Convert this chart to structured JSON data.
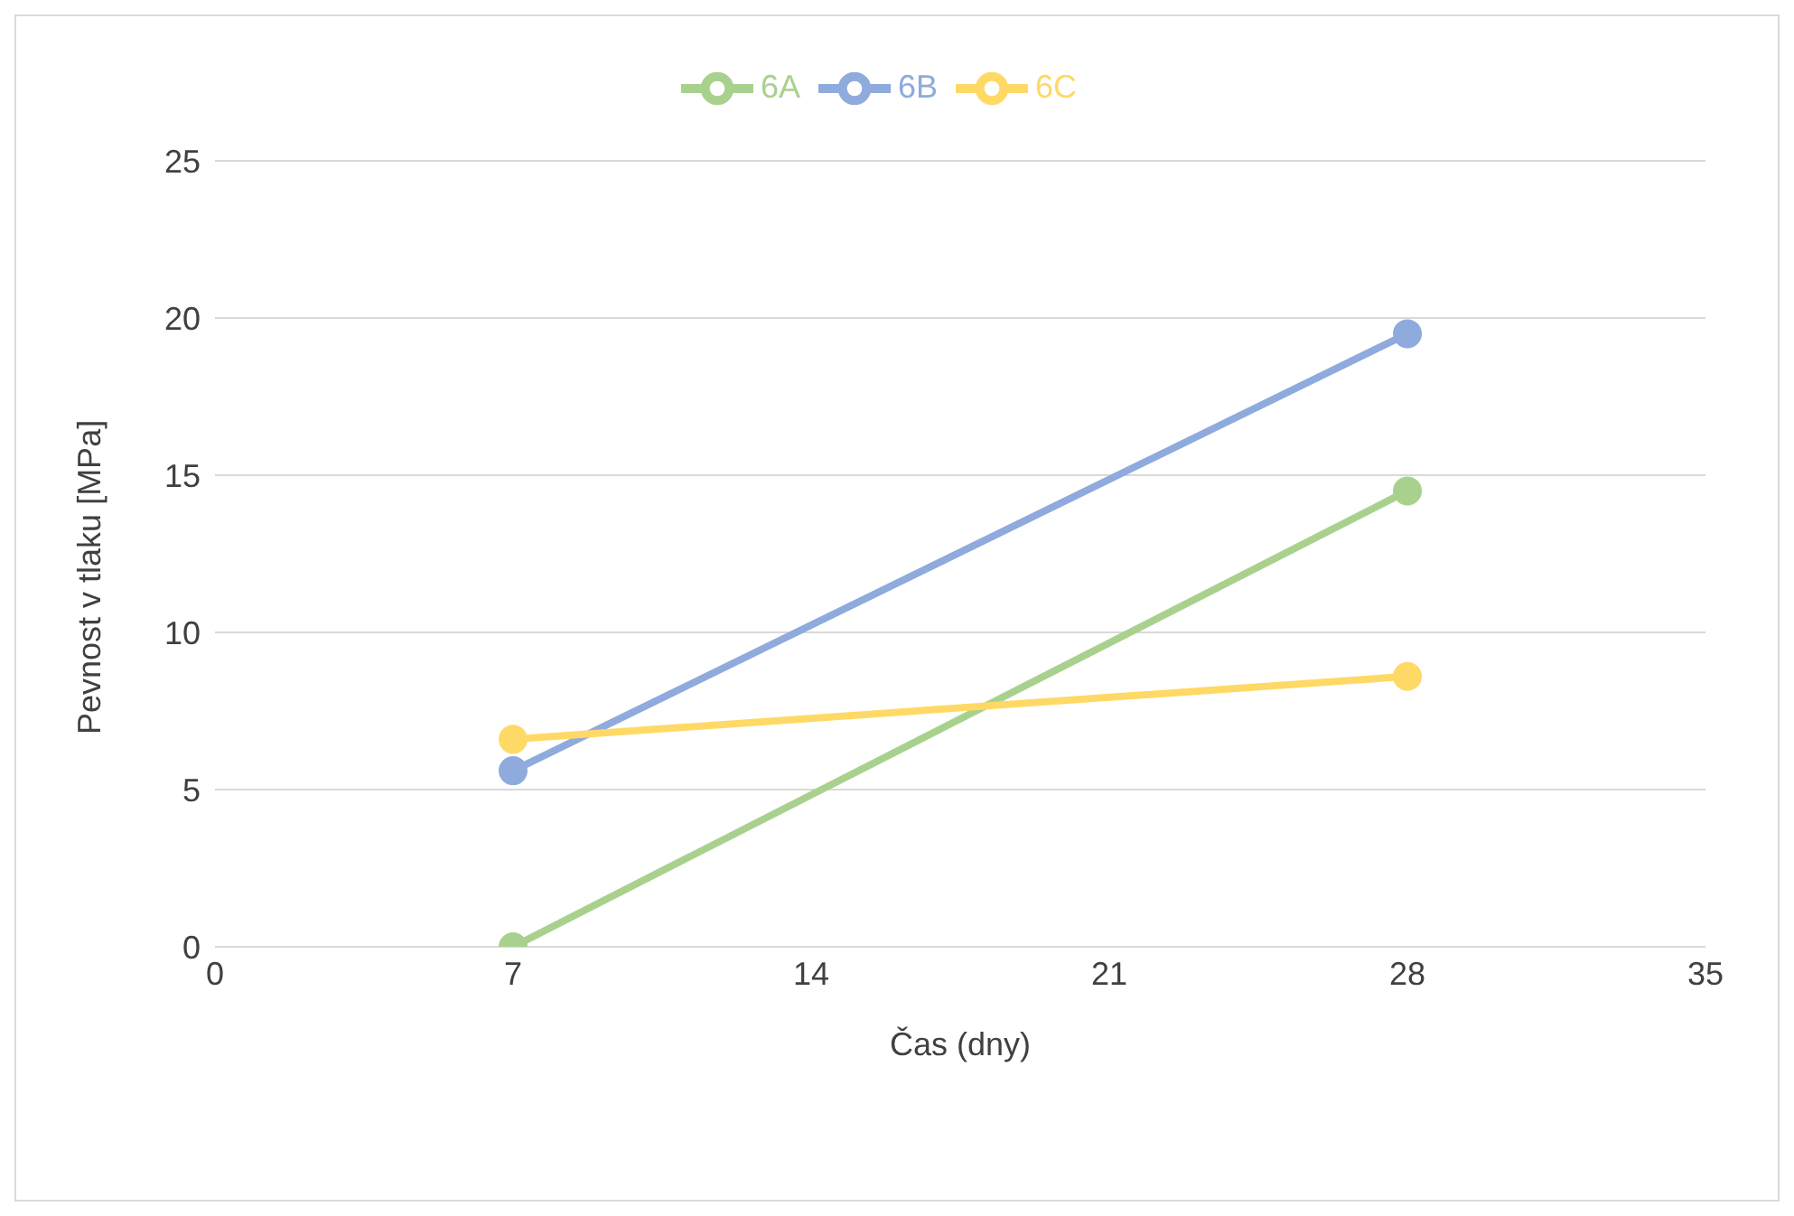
{
  "chart_data": {
    "type": "line",
    "xlabel": "Čas (dny)",
    "ylabel": "Pevnost v tlaku [MPa]",
    "x": [
      7,
      28
    ],
    "series": [
      {
        "name": "6A",
        "color": "#a9d18e",
        "values": [
          0,
          14.5
        ]
      },
      {
        "name": "6B",
        "color": "#8faadc",
        "values": [
          5.6,
          19.5
        ]
      },
      {
        "name": "6C",
        "color": "#ffd966",
        "values": [
          6.6,
          8.6
        ]
      }
    ],
    "xlim": [
      0,
      35
    ],
    "xticks": [
      0,
      7,
      14,
      21,
      28,
      35
    ],
    "ylim": [
      0,
      25
    ],
    "yticks": [
      0,
      5,
      10,
      15,
      20,
      25
    ],
    "grid": "y",
    "legend": "top",
    "marker": "circle",
    "line_style": "solid"
  }
}
